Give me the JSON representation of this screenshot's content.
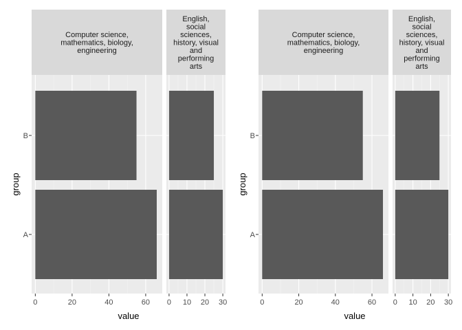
{
  "chart_data": [
    {
      "type": "bar",
      "orientation": "horizontal",
      "xlabel": "value",
      "ylabel": "group",
      "categories": [
        "A",
        "B"
      ],
      "facets": [
        {
          "strip": [
            "Computer science,",
            "mathematics, biology,",
            "engineering"
          ],
          "xlim": [
            -2,
            69
          ],
          "xticks": [
            "0",
            "20",
            "40",
            "60"
          ],
          "values": {
            "A": 66,
            "B": 55
          }
        },
        {
          "strip": [
            "English,",
            "social",
            "sciences,",
            "history, visual",
            "and",
            "performing",
            "arts"
          ],
          "xlim": [
            -1.5,
            31.5
          ],
          "xticks": [
            "0",
            "10",
            "20",
            "30"
          ],
          "values": {
            "A": 30,
            "B": 25
          }
        }
      ]
    },
    {
      "type": "bar",
      "orientation": "horizontal",
      "xlabel": "value",
      "ylabel": "group",
      "categories": [
        "A",
        "B"
      ],
      "facets": [
        {
          "strip": [
            "Computer science,",
            "mathematics, biology,",
            "engineering"
          ],
          "xlim": [
            -2,
            69
          ],
          "xticks": [
            "0",
            "20",
            "40",
            "60"
          ],
          "values": {
            "A": 66,
            "B": 55
          }
        },
        {
          "strip": [
            "English,",
            "social",
            "sciences,",
            "history, visual",
            "and",
            "performing",
            "arts"
          ],
          "xlim": [
            -1.5,
            31.5
          ],
          "xticks": [
            "0",
            "10",
            "20",
            "30"
          ],
          "values": {
            "A": 30,
            "B": 25
          }
        }
      ]
    }
  ],
  "colors": {
    "panel_bg": "#ebebeb",
    "strip_bg": "#d9d9d9",
    "bar_fill": "#595959",
    "grid_major": "#ffffff",
    "grid_minor": "#f4f4f4",
    "tick": "#333333"
  }
}
